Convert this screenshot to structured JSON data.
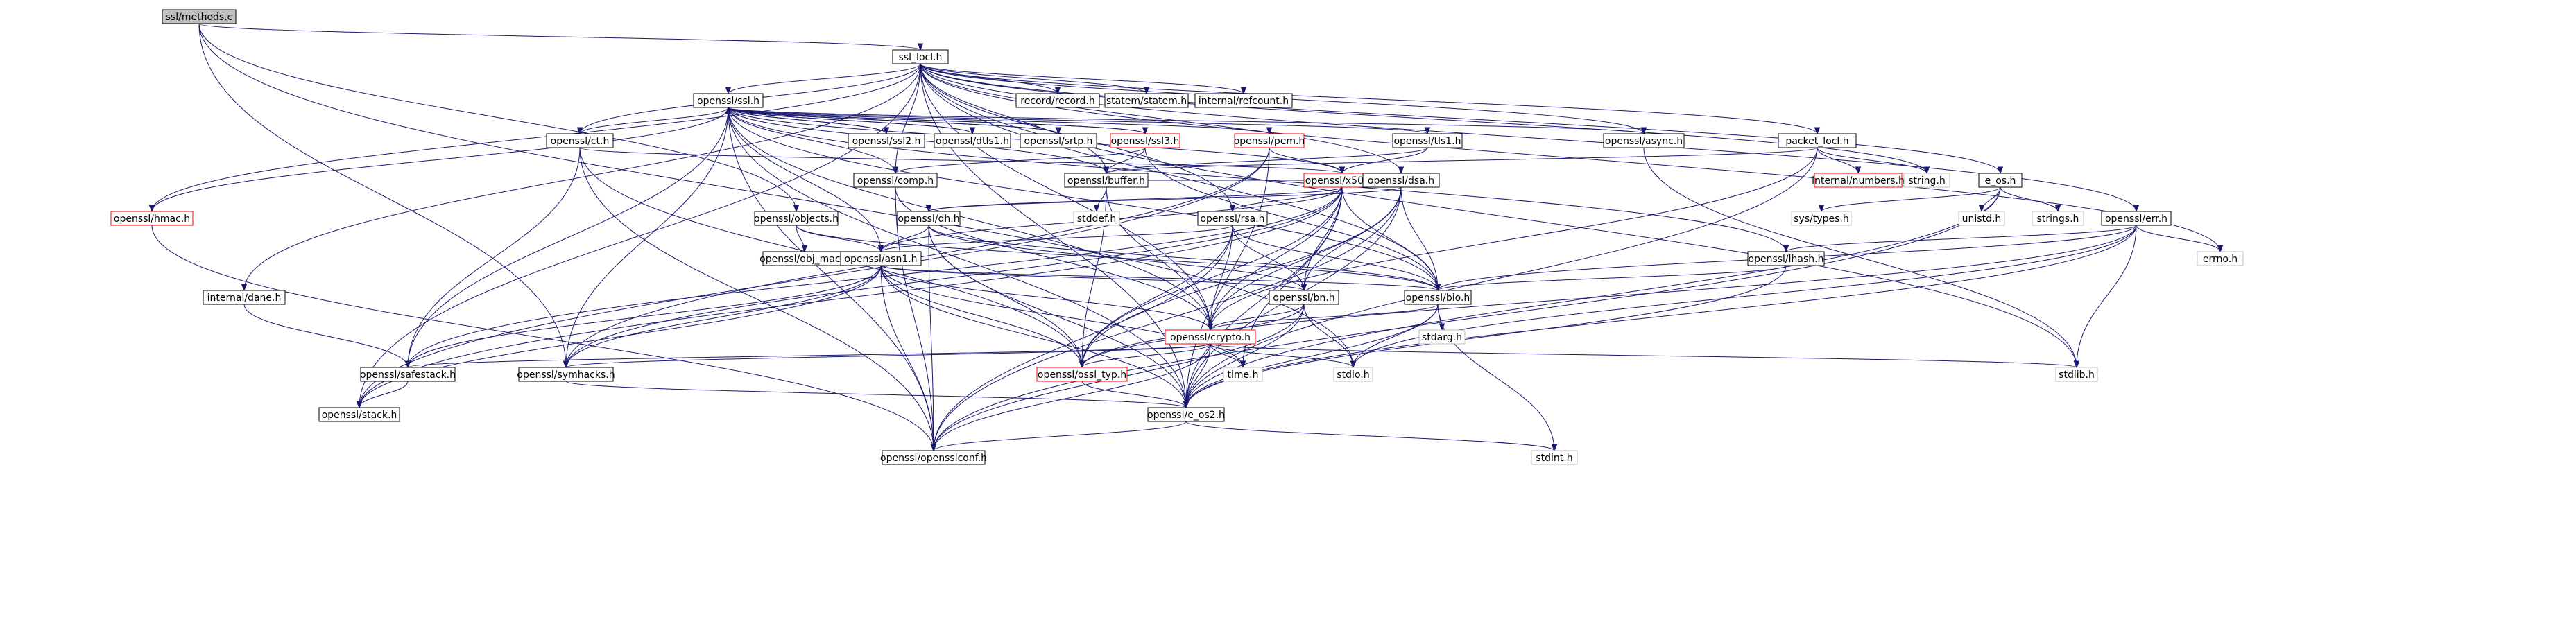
{
  "nodes": [
    {
      "id": "ssl_methods_c",
      "label": "ssl/methods.c",
      "style": "root"
    },
    {
      "id": "ssl_locl_h",
      "label": "ssl_locl.h",
      "style": "normal"
    },
    {
      "id": "openssl_ssl_h",
      "label": "openssl/ssl.h",
      "style": "normal"
    },
    {
      "id": "record_h",
      "label": "record/record.h",
      "style": "normal"
    },
    {
      "id": "statem_h",
      "label": "statem/statem.h",
      "style": "normal"
    },
    {
      "id": "refcount_h",
      "label": "internal/refcount.h",
      "style": "normal"
    },
    {
      "id": "ct_h",
      "label": "openssl/ct.h",
      "style": "normal"
    },
    {
      "id": "ssl2_h",
      "label": "openssl/ssl2.h",
      "style": "normal"
    },
    {
      "id": "dtls1_h",
      "label": "openssl/dtls1.h",
      "style": "normal"
    },
    {
      "id": "srtp_h",
      "label": "openssl/srtp.h",
      "style": "normal"
    },
    {
      "id": "ssl3_h",
      "label": "openssl/ssl3.h",
      "style": "red"
    },
    {
      "id": "pem_h",
      "label": "openssl/pem.h",
      "style": "red"
    },
    {
      "id": "tls1_h",
      "label": "openssl/tls1.h",
      "style": "normal"
    },
    {
      "id": "async_h",
      "label": "openssl/async.h",
      "style": "normal"
    },
    {
      "id": "packet_locl_h",
      "label": "packet_locl.h",
      "style": "normal"
    },
    {
      "id": "comp_h",
      "label": "openssl/comp.h",
      "style": "normal"
    },
    {
      "id": "x509_h",
      "label": "openssl/x509.h",
      "style": "red"
    },
    {
      "id": "buffer_h",
      "label": "openssl/buffer.h",
      "style": "normal"
    },
    {
      "id": "dsa_h",
      "label": "openssl/dsa.h",
      "style": "normal"
    },
    {
      "id": "numbers_h",
      "label": "internal/numbers.h",
      "style": "red"
    },
    {
      "id": "string_h",
      "label": "string.h",
      "style": "gray"
    },
    {
      "id": "e_os_h",
      "label": "e_os.h",
      "style": "normal"
    },
    {
      "id": "hmac_h",
      "label": "openssl/hmac.h",
      "style": "red"
    },
    {
      "id": "objects_h",
      "label": "openssl/objects.h",
      "style": "normal"
    },
    {
      "id": "stddef_h",
      "label": "stddef.h",
      "style": "gray"
    },
    {
      "id": "dh_h",
      "label": "openssl/dh.h",
      "style": "normal"
    },
    {
      "id": "rsa_h",
      "label": "openssl/rsa.h",
      "style": "normal"
    },
    {
      "id": "sys_types_h",
      "label": "sys/types.h",
      "style": "gray"
    },
    {
      "id": "unistd_h",
      "label": "unistd.h",
      "style": "gray"
    },
    {
      "id": "strings_h",
      "label": "strings.h",
      "style": "gray"
    },
    {
      "id": "err_h",
      "label": "openssl/err.h",
      "style": "normal"
    },
    {
      "id": "obj_mac_h",
      "label": "openssl/obj_mac.h",
      "style": "normal"
    },
    {
      "id": "lhash_h",
      "label": "openssl/lhash.h",
      "style": "normal"
    },
    {
      "id": "errno_h",
      "label": "errno.h",
      "style": "gray"
    },
    {
      "id": "asn1_h",
      "label": "openssl/asn1.h",
      "style": "normal"
    },
    {
      "id": "bn_h",
      "label": "openssl/bn.h",
      "style": "normal"
    },
    {
      "id": "bio_h",
      "label": "openssl/bio.h",
      "style": "normal"
    },
    {
      "id": "dane_h",
      "label": "internal/dane.h",
      "style": "normal"
    },
    {
      "id": "crypto_h",
      "label": "openssl/crypto.h",
      "style": "red"
    },
    {
      "id": "stdarg_h",
      "label": "stdarg.h",
      "style": "gray"
    },
    {
      "id": "safestack_h",
      "label": "openssl/safestack.h",
      "style": "normal"
    },
    {
      "id": "symhacks_h",
      "label": "openssl/symhacks.h",
      "style": "normal"
    },
    {
      "id": "ossl_typ_h",
      "label": "openssl/ossl_typ.h",
      "style": "red"
    },
    {
      "id": "time_h",
      "label": "time.h",
      "style": "gray"
    },
    {
      "id": "stdio_h",
      "label": "stdio.h",
      "style": "gray"
    },
    {
      "id": "stdlib_h",
      "label": "stdlib.h",
      "style": "gray"
    },
    {
      "id": "stack_h",
      "label": "openssl/stack.h",
      "style": "normal"
    },
    {
      "id": "e_os2_h",
      "label": "openssl/e_os2.h",
      "style": "normal"
    },
    {
      "id": "opensslconf_h",
      "label": "openssl/opensslconf.h",
      "style": "normal"
    },
    {
      "id": "stdint_h",
      "label": "stdint.h",
      "style": "gray"
    }
  ],
  "edges": [
    [
      "ssl_methods_c",
      "ssl_locl_h"
    ],
    [
      "ssl_methods_c",
      "objects_h"
    ],
    [
      "ssl_methods_c",
      "stdio_h"
    ],
    [
      "ssl_methods_c",
      "symhacks_h"
    ],
    [
      "ssl_locl_h",
      "openssl_ssl_h"
    ],
    [
      "ssl_locl_h",
      "record_h"
    ],
    [
      "ssl_locl_h",
      "statem_h"
    ],
    [
      "ssl_locl_h",
      "refcount_h"
    ],
    [
      "ssl_locl_h",
      "ct_h"
    ],
    [
      "ssl_locl_h",
      "comp_h"
    ],
    [
      "ssl_locl_h",
      "buffer_h"
    ],
    [
      "ssl_locl_h",
      "dsa_h"
    ],
    [
      "ssl_locl_h",
      "rsa_h"
    ],
    [
      "ssl_locl_h",
      "async_h"
    ],
    [
      "ssl_locl_h",
      "packet_locl_h"
    ],
    [
      "ssl_locl_h",
      "string_h"
    ],
    [
      "ssl_locl_h",
      "e_os_h"
    ],
    [
      "ssl_locl_h",
      "err_h"
    ],
    [
      "ssl_locl_h",
      "errno_h"
    ],
    [
      "ssl_locl_h",
      "stdlib_h"
    ],
    [
      "ssl_locl_h",
      "hmac_h"
    ],
    [
      "ssl_locl_h",
      "dane_h"
    ],
    [
      "ssl_locl_h",
      "stack_h"
    ],
    [
      "ssl_locl_h",
      "bio_h"
    ],
    [
      "ssl_locl_h",
      "crypto_h"
    ],
    [
      "ssl_locl_h",
      "e_os2_h"
    ],
    [
      "openssl_ssl_h",
      "ct_h"
    ],
    [
      "openssl_ssl_h",
      "ssl2_h"
    ],
    [
      "openssl_ssl_h",
      "dtls1_h"
    ],
    [
      "openssl_ssl_h",
      "srtp_h"
    ],
    [
      "openssl_ssl_h",
      "ssl3_h"
    ],
    [
      "openssl_ssl_h",
      "pem_h"
    ],
    [
      "openssl_ssl_h",
      "tls1_h"
    ],
    [
      "openssl_ssl_h",
      "async_h"
    ],
    [
      "openssl_ssl_h",
      "comp_h"
    ],
    [
      "openssl_ssl_h",
      "x509_h"
    ],
    [
      "openssl_ssl_h",
      "buffer_h"
    ],
    [
      "openssl_ssl_h",
      "lhash_h"
    ],
    [
      "openssl_ssl_h",
      "bio_h"
    ],
    [
      "openssl_ssl_h",
      "hmac_h"
    ],
    [
      "openssl_ssl_h",
      "safestack_h"
    ],
    [
      "openssl_ssl_h",
      "crypto_h"
    ],
    [
      "openssl_ssl_h",
      "e_os2_h"
    ],
    [
      "openssl_ssl_h",
      "opensslconf_h"
    ],
    [
      "openssl_ssl_h",
      "symhacks_h"
    ],
    [
      "openssl_ssl_h",
      "asn1_h"
    ],
    [
      "ssl2_h",
      "openssl_ssl_h"
    ],
    [
      "dtls1_h",
      "openssl_ssl_h"
    ],
    [
      "srtp_h",
      "openssl_ssl_h"
    ],
    [
      "ssl3_h",
      "openssl_ssl_h"
    ],
    [
      "ssl3_h",
      "comp_h"
    ],
    [
      "ssl3_h",
      "buffer_h"
    ],
    [
      "ssl3_h",
      "bio_h"
    ],
    [
      "ct_h",
      "x509_h"
    ],
    [
      "ct_h",
      "safestack_h"
    ],
    [
      "ct_h",
      "opensslconf_h"
    ],
    [
      "ct_h",
      "ossl_typ_h"
    ],
    [
      "pem_h",
      "x509_h"
    ],
    [
      "pem_h",
      "e_os2_h"
    ],
    [
      "pem_h",
      "symhacks_h"
    ],
    [
      "pem_h",
      "stack_h"
    ],
    [
      "tls1_h",
      "x509_h"
    ],
    [
      "tls1_h",
      "buffer_h"
    ],
    [
      "comp_h",
      "crypto_h"
    ],
    [
      "comp_h",
      "opensslconf_h"
    ],
    [
      "async_h",
      "stdlib_h"
    ],
    [
      "packet_locl_h",
      "buffer_h"
    ],
    [
      "packet_locl_h",
      "numbers_h"
    ],
    [
      "packet_locl_h",
      "string_h"
    ],
    [
      "packet_locl_h",
      "crypto_h"
    ],
    [
      "packet_locl_h",
      "e_os2_h"
    ],
    [
      "x509_h",
      "buffer_h"
    ],
    [
      "x509_h",
      "dsa_h"
    ],
    [
      "x509_h",
      "dh_h"
    ],
    [
      "x509_h",
      "rsa_h"
    ],
    [
      "x509_h",
      "asn1_h"
    ],
    [
      "x509_h",
      "bio_h"
    ],
    [
      "x509_h",
      "symhacks_h"
    ],
    [
      "x509_h",
      "safestack_h"
    ],
    [
      "x509_h",
      "stack_h"
    ],
    [
      "x509_h",
      "ossl_typ_h"
    ],
    [
      "x509_h",
      "e_os2_h"
    ],
    [
      "x509_h",
      "time_h"
    ],
    [
      "x509_h",
      "bn_h"
    ],
    [
      "x509_h",
      "crypto_h"
    ],
    [
      "buffer_h",
      "stddef_h"
    ],
    [
      "buffer_h",
      "ossl_typ_h"
    ],
    [
      "buffer_h",
      "crypto_h"
    ],
    [
      "dsa_h",
      "dh_h"
    ],
    [
      "dsa_h",
      "bn_h"
    ],
    [
      "dsa_h",
      "bio_h"
    ],
    [
      "dsa_h",
      "crypto_h"
    ],
    [
      "dsa_h",
      "ossl_typ_h"
    ],
    [
      "dsa_h",
      "e_os2_h"
    ],
    [
      "dsa_h",
      "opensslconf_h"
    ],
    [
      "e_os_h",
      "sys_types_h"
    ],
    [
      "e_os_h",
      "unistd_h"
    ],
    [
      "e_os_h",
      "strings_h"
    ],
    [
      "e_os_h",
      "e_os2_h"
    ],
    [
      "e_os_h",
      "opensslconf_h"
    ],
    [
      "hmac_h",
      "opensslconf_h"
    ],
    [
      "objects_h",
      "obj_mac_h"
    ],
    [
      "objects_h",
      "asn1_h"
    ],
    [
      "objects_h",
      "bio_h"
    ],
    [
      "dh_h",
      "asn1_h"
    ],
    [
      "dh_h",
      "bn_h"
    ],
    [
      "dh_h",
      "bio_h"
    ],
    [
      "dh_h",
      "ossl_typ_h"
    ],
    [
      "dh_h",
      "opensslconf_h"
    ],
    [
      "dh_h",
      "e_os2_h"
    ],
    [
      "rsa_h",
      "asn1_h"
    ],
    [
      "rsa_h",
      "bn_h"
    ],
    [
      "rsa_h",
      "bio_h"
    ],
    [
      "rsa_h",
      "crypto_h"
    ],
    [
      "rsa_h",
      "opensslconf_h"
    ],
    [
      "rsa_h",
      "ossl_typ_h"
    ],
    [
      "err_h",
      "lhash_h"
    ],
    [
      "err_h",
      "bio_h"
    ],
    [
      "err_h",
      "errno_h"
    ],
    [
      "err_h",
      "stdlib_h"
    ],
    [
      "err_h",
      "stdio_h"
    ],
    [
      "err_h",
      "e_os2_h"
    ],
    [
      "err_h",
      "ossl_typ_h"
    ],
    [
      "lhash_h",
      "bio_h"
    ],
    [
      "lhash_h",
      "e_os2_h"
    ],
    [
      "asn1_h",
      "bn_h"
    ],
    [
      "asn1_h",
      "bio_h"
    ],
    [
      "asn1_h",
      "safestack_h"
    ],
    [
      "asn1_h",
      "symhacks_h"
    ],
    [
      "asn1_h",
      "ossl_typ_h"
    ],
    [
      "asn1_h",
      "time_h"
    ],
    [
      "asn1_h",
      "e_os2_h"
    ],
    [
      "asn1_h",
      "opensslconf_h"
    ],
    [
      "asn1_h",
      "stack_h"
    ],
    [
      "asn1_h",
      "crypto_h"
    ],
    [
      "bn_h",
      "crypto_h"
    ],
    [
      "bn_h",
      "ossl_typ_h"
    ],
    [
      "bn_h",
      "stdio_h"
    ],
    [
      "bn_h",
      "e_os2_h"
    ],
    [
      "bn_h",
      "opensslconf_h"
    ],
    [
      "bio_h",
      "crypto_h"
    ],
    [
      "bio_h",
      "stdarg_h"
    ],
    [
      "bio_h",
      "stdio_h"
    ],
    [
      "bio_h",
      "e_os2_h"
    ],
    [
      "bio_h",
      "stdint_h"
    ],
    [
      "dane_h",
      "safestack_h"
    ],
    [
      "crypto_h",
      "safestack_h"
    ],
    [
      "crypto_h",
      "symhacks_h"
    ],
    [
      "crypto_h",
      "ossl_typ_h"
    ],
    [
      "crypto_h",
      "time_h"
    ],
    [
      "crypto_h",
      "stdio_h"
    ],
    [
      "crypto_h",
      "stdlib_h"
    ],
    [
      "crypto_h",
      "e_os2_h"
    ],
    [
      "crypto_h",
      "opensslconf_h"
    ],
    [
      "safestack_h",
      "stack_h"
    ],
    [
      "symhacks_h",
      "e_os2_h"
    ],
    [
      "ossl_typ_h",
      "e_os2_h"
    ],
    [
      "e_os2_h",
      "opensslconf_h"
    ],
    [
      "e_os2_h",
      "stdint_h"
    ]
  ],
  "colors": {
    "edge": "#191970",
    "node_border": "#000000",
    "root_fill": "#bfbfbf",
    "red_border": "#ff0000",
    "gray_border": "#bfbfbf",
    "fill": "#ffffff"
  }
}
